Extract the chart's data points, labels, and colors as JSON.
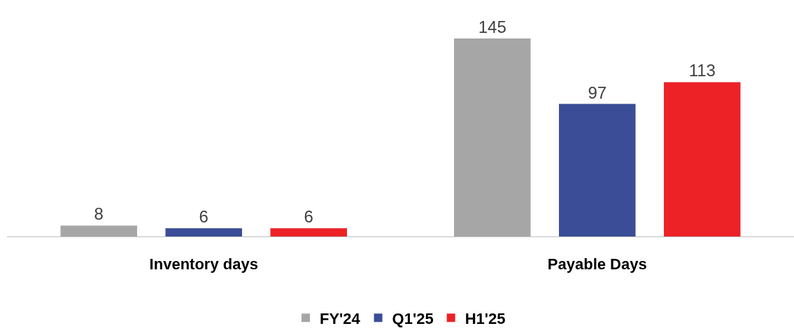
{
  "chart_data": {
    "type": "bar",
    "categories": [
      "Inventory days",
      "Payable Days"
    ],
    "series": [
      {
        "name": "FY'24",
        "color": "#a6a6a6",
        "values": [
          8,
          145
        ]
      },
      {
        "name": "Q1'25",
        "color": "#3a4d96",
        "values": [
          6,
          97
        ]
      },
      {
        "name": "H1'25",
        "color": "#ec2227",
        "values": [
          6,
          113
        ]
      }
    ],
    "data_labels": true,
    "legend": "bottom"
  }
}
